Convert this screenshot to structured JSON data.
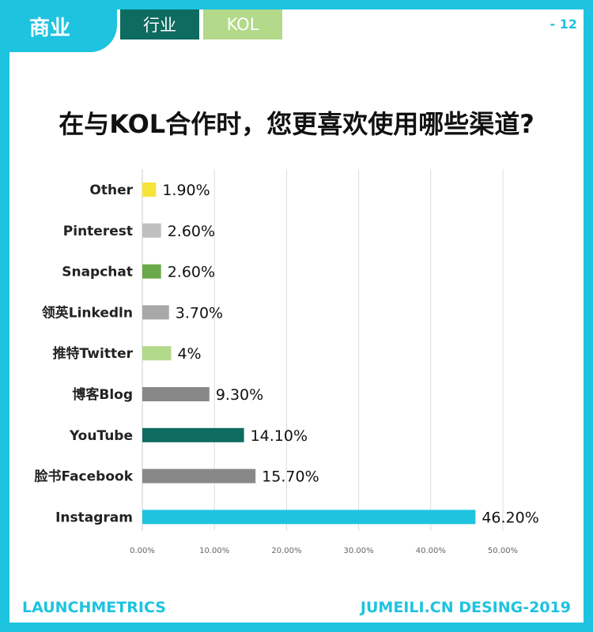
{
  "header": {
    "section": "商业",
    "tabs": [
      {
        "label": "行业",
        "color": "#0e6b60"
      },
      {
        "label": "KOL",
        "color": "#b3d98a"
      }
    ],
    "page_number": "- 12"
  },
  "footer": {
    "left": "LAUNCHMETRICS",
    "right": "JUMEILI.CN DESING-2019"
  },
  "colors": {
    "accent": "#1ec3e0"
  },
  "chart_data": {
    "type": "bar",
    "orientation": "horizontal",
    "title": "在与KOL合作时，您更喜欢使用哪些渠道?",
    "xlabel": "",
    "ylabel": "",
    "xlim": [
      0,
      50
    ],
    "grid": true,
    "x_ticks": [
      "0.00%",
      "10.00%",
      "20.00%",
      "30.00%",
      "40.00%",
      "50.00%"
    ],
    "categories": [
      "Other",
      "Pinterest",
      "Snapchat",
      "领英Linkedln",
      "推特Twitter",
      "博客Blog",
      "YouTube",
      "脸书Facebook",
      "Instagram"
    ],
    "values": [
      1.9,
      2.6,
      2.6,
      3.7,
      4,
      9.3,
      14.1,
      15.7,
      46.2
    ],
    "value_labels": [
      "1.90%",
      "2.60%",
      "2.60%",
      "3.70%",
      "4%",
      "9.30%",
      "14.10%",
      "15.70%",
      "46.20%"
    ],
    "bar_colors": [
      "#f6e43a",
      "#c0c0c0",
      "#6aa94a",
      "#a8a8a8",
      "#b3d98a",
      "#888888",
      "#0e6b60",
      "#888888",
      "#1ec3e0"
    ]
  }
}
